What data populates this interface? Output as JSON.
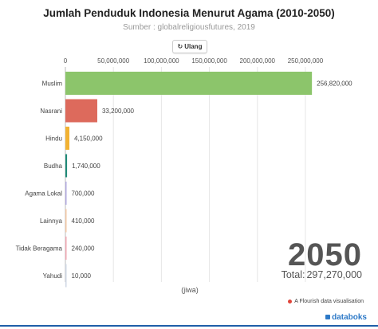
{
  "header": {
    "title": "Jumlah Penduduk Indonesia Menurut Agama (2010-2050)",
    "subtitle": "Sumber : globalreligiousfutures, 2019",
    "replay_label": "Ulang"
  },
  "overlay": {
    "year": "2050",
    "total_label": "Total:",
    "total_value": "297,270,000"
  },
  "footer": {
    "flourish_text": "A Flourish data visualisation",
    "brand": "databoks"
  },
  "chart_data": {
    "type": "bar",
    "orientation": "horizontal",
    "title": "Jumlah Penduduk Indonesia Menurut Agama (2010-2050)",
    "subtitle": "Sumber : globalreligiousfutures, 2019",
    "xlabel": "(jiwa)",
    "xlim": [
      0,
      265000000
    ],
    "x_ticks": [
      0,
      50000000,
      100000000,
      150000000,
      200000000,
      250000000
    ],
    "x_tick_labels": [
      "0",
      "50,000,000",
      "100,000,000",
      "150,000,000",
      "200,000,000",
      "250,000,000"
    ],
    "categories": [
      "Muslim",
      "Nasrani",
      "Hindu",
      "Budha",
      "Agama Lokal",
      "Lainnya",
      "Tidak Beragama",
      "Yahudi"
    ],
    "values": [
      256820000,
      33200000,
      4150000,
      1740000,
      700000,
      410000,
      240000,
      10000
    ],
    "value_labels": [
      "256,820,000",
      "33,200,000",
      "4,150,000",
      "1,740,000",
      "700,000",
      "410,000",
      "240,000",
      "10,000"
    ],
    "colors": [
      "#8cc56b",
      "#dd6a5c",
      "#f2b233",
      "#1f8a78",
      "#b0a8e0",
      "#f4c7a3",
      "#f2a6b2",
      "#cfd7e4"
    ],
    "grid": true,
    "year": "2050",
    "total": "297,270,000"
  }
}
